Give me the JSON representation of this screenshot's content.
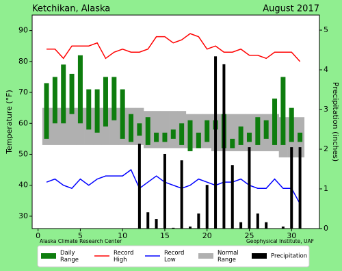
{
  "chart_data": {
    "type": "combo",
    "title": "Ketchikan, Alaska",
    "subtitle": "August 2017",
    "y_label": "Temperature (°F)",
    "y2_label": "Precipitation (inches)",
    "notes": [
      "Alaska Climate Research Center",
      "Geophysical Institute, UAF"
    ],
    "x": [
      1,
      2,
      3,
      4,
      5,
      6,
      7,
      8,
      9,
      10,
      11,
      12,
      13,
      14,
      15,
      16,
      17,
      18,
      19,
      20,
      21,
      22,
      23,
      24,
      25,
      26,
      27,
      28,
      29,
      30,
      31
    ],
    "xlim": [
      -0.7,
      33.3
    ],
    "xticks": [
      0,
      5,
      10,
      15,
      20,
      25,
      30
    ],
    "ylim": [
      26,
      95
    ],
    "yticks": [
      30,
      40,
      50,
      60,
      70,
      80,
      90
    ],
    "y2lim": [
      0,
      5.38
    ],
    "y2ticks": [
      0,
      1,
      2,
      3,
      4,
      5
    ],
    "series": [
      {
        "name": "Daily Range",
        "type": "range_bar",
        "color": "#0e7d0e",
        "low": [
          55,
          60,
          60,
          63,
          60,
          58,
          57,
          59,
          61,
          55,
          54,
          56,
          53,
          54,
          54,
          55,
          53,
          51,
          52,
          54,
          58,
          52,
          52,
          53,
          54,
          53,
          55,
          53,
          53,
          54,
          54
        ],
        "high": [
          73,
          75,
          79,
          76,
          82,
          71,
          71,
          75,
          75,
          71,
          63,
          60,
          62,
          57,
          57,
          58,
          60,
          61,
          57,
          61,
          61,
          63,
          55,
          59,
          57,
          62,
          61,
          68,
          75,
          65,
          57
        ]
      },
      {
        "name": "Record High",
        "type": "line",
        "color": "#ff0000",
        "values": [
          84,
          84,
          81,
          85,
          85,
          85,
          86,
          81,
          83,
          84,
          83,
          83,
          84,
          88,
          88,
          86,
          87,
          89,
          88,
          84,
          85,
          83,
          83,
          84,
          82,
          82,
          81,
          83,
          83,
          83,
          80
        ]
      },
      {
        "name": "Record Low",
        "type": "line",
        "color": "#0000ff",
        "values": [
          41,
          42,
          40,
          39,
          42,
          40,
          42,
          43,
          43,
          43,
          45,
          39,
          41,
          43,
          41,
          40,
          39,
          40,
          42,
          41,
          40,
          41,
          41,
          42,
          40,
          39,
          39,
          42,
          39,
          39,
          34
        ]
      },
      {
        "name": "Normal Range",
        "type": "range_area",
        "color": "#b0b0b0",
        "low": [
          53,
          53,
          53,
          53,
          53,
          53,
          53,
          53,
          53,
          53,
          53,
          53,
          52,
          52,
          52,
          52,
          52,
          52,
          52,
          52,
          51,
          51,
          51,
          51,
          51,
          51,
          51,
          51,
          49,
          49,
          49
        ],
        "high": [
          65,
          65,
          65,
          65,
          65,
          65,
          65,
          65,
          65,
          65,
          65,
          65,
          64,
          64,
          64,
          64,
          64,
          63,
          63,
          63,
          63,
          63,
          63,
          63,
          63,
          63,
          63,
          63,
          62,
          62,
          62
        ]
      },
      {
        "name": "Precipitation",
        "type": "bar",
        "color": "#000000",
        "axis": "y2",
        "values": [
          0,
          0,
          0,
          0,
          0,
          0,
          0,
          0,
          0,
          0,
          0,
          2.14,
          0.41,
          0.24,
          1.88,
          0.02,
          1.72,
          0.05,
          0.38,
          1.1,
          4.34,
          4.14,
          1.6,
          0.16,
          2.05,
          0.38,
          0.16,
          0,
          0.05,
          2.05,
          2.05
        ]
      }
    ]
  }
}
